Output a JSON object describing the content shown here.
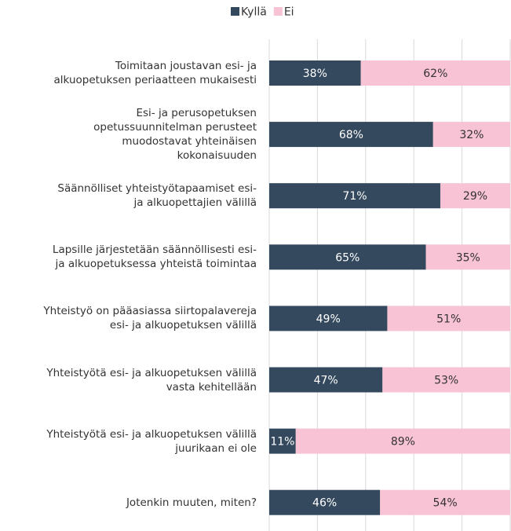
{
  "chart_data": {
    "type": "stacked_barh",
    "categories": [
      "Toimitaan joustavan esi- ja\nalkuopetuksen periaatteen mukaisesti",
      "Esi- ja perusopetuksen\nopetussuunnitelman perusteet\nmuodostavat yhteinäisen\nkokonaisuuden",
      "Säännölliset yhteistyötapaamiset esi-\nja alkuopettajien välillä",
      "Lapsille järjestetään säännöllisesti esi-\nja alkuopetuksessa yhteistä toimintaa",
      "Yhteistyö on pääasiassa siirtopalavereja\nesi- ja alkuopetuksen välillä",
      "Yhteistyötä esi- ja alkuopetuksen välillä\nvasta kehitellään",
      "Yhteistyötä esi- ja alkuopetuksen välillä\njuurikaan ei ole",
      "Jotenkin muuten, miten?"
    ],
    "series": [
      {
        "name": "Kyllä",
        "color": "#34495e",
        "values": [
          38,
          68,
          71,
          65,
          49,
          47,
          11,
          46
        ],
        "value_labels": [
          "38%",
          "68%",
          "71%",
          "65%",
          "49%",
          "47%",
          "11%",
          "46%"
        ]
      },
      {
        "name": "Ei",
        "color": "#f8c3d4",
        "values": [
          62,
          32,
          29,
          35,
          51,
          53,
          89,
          54
        ],
        "value_labels": [
          "62%",
          "32%",
          "29%",
          "35%",
          "51%",
          "53%",
          "89%",
          "54%"
        ]
      }
    ],
    "xlim": [
      0,
      100
    ],
    "xticks": [
      0,
      20,
      40,
      60,
      80,
      100
    ],
    "grid": true,
    "legend": "top"
  }
}
